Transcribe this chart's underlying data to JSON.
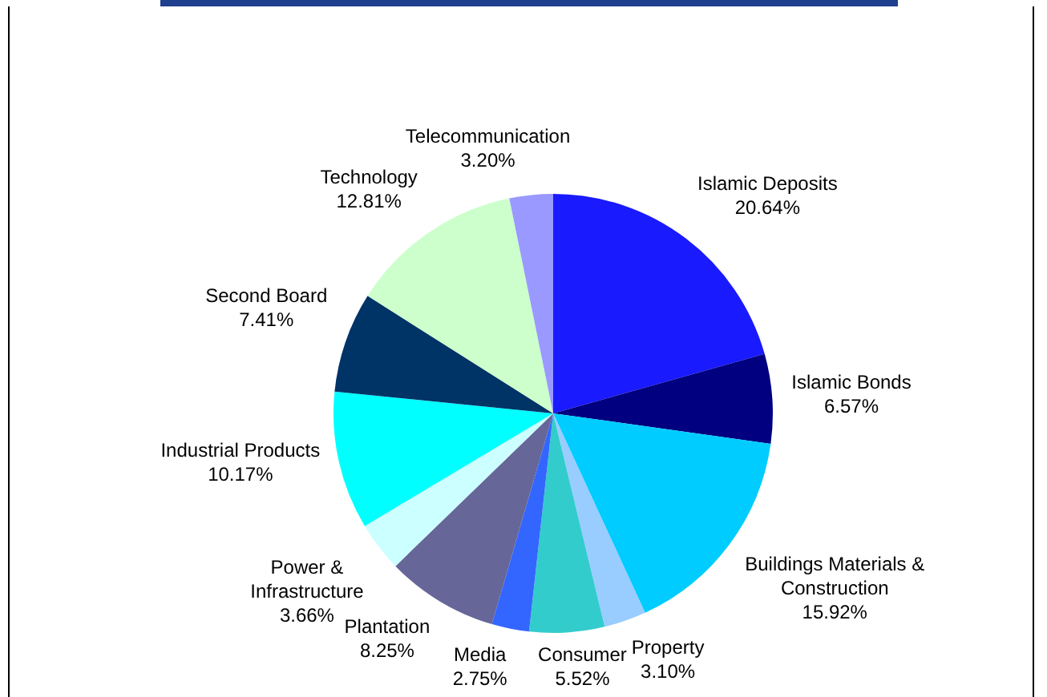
{
  "chart_data": {
    "type": "pie",
    "categories": [
      "Islamic Deposits",
      "Islamic Bonds",
      "Buildings Materials & Construction",
      "Property",
      "Consumer",
      "Media",
      "Plantation",
      "Power & Infrastructure",
      "Industrial Products",
      "Second Board",
      "Technology",
      "Telecommunication"
    ],
    "values": [
      20.64,
      6.57,
      15.92,
      3.1,
      5.52,
      2.75,
      8.25,
      3.66,
      10.17,
      7.41,
      12.81,
      3.2
    ],
    "value_labels": [
      "20.64%",
      "6.57%",
      "15.92%",
      "3.10%",
      "5.52%",
      "2.75%",
      "8.25%",
      "3.66%",
      "10.17%",
      "7.41%",
      "12.81%",
      "3.20%"
    ],
    "colors": [
      "#1a1aff",
      "#000080",
      "#00ccff",
      "#99ccff",
      "#33cccc",
      "#3366ff",
      "#666699",
      "#ccffff",
      "#00ffff",
      "#003366",
      "#ccffcc",
      "#9999ff"
    ],
    "legend": false
  }
}
